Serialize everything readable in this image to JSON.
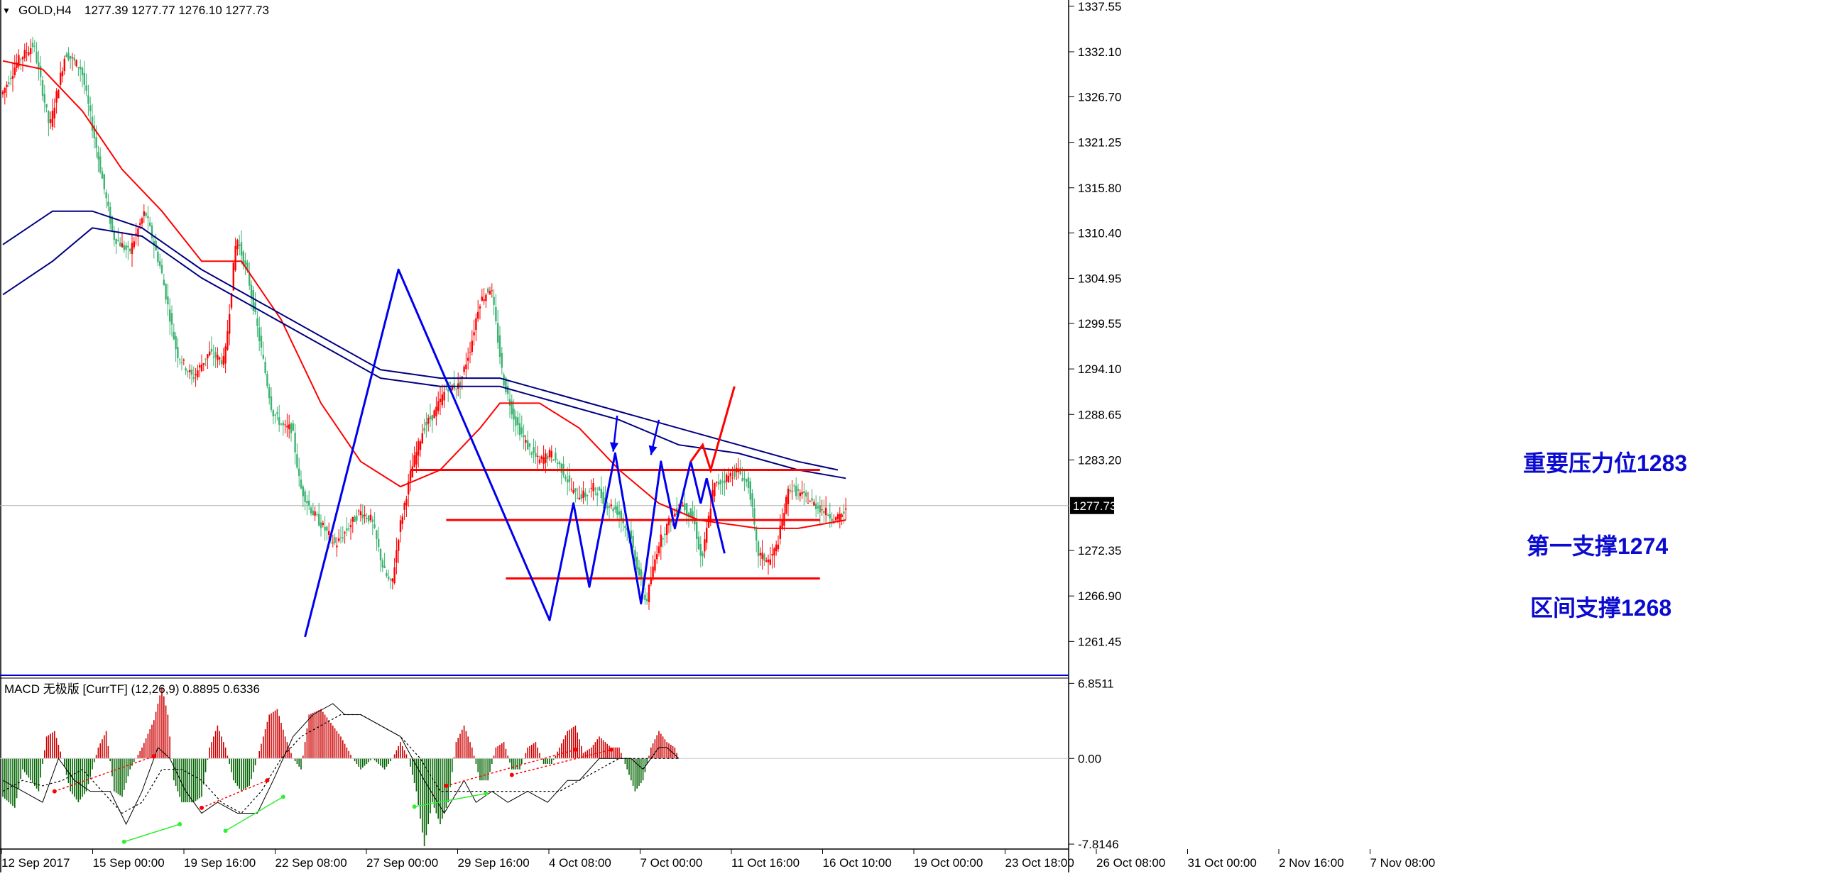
{
  "chart_data": [
    {
      "type": "candlestick",
      "header": {
        "menu_glyph": "▼",
        "symbol": "GOLD,H4",
        "ohlc": "1277.39 1277.77 1276.10 1277.73",
        "open": 1277.39,
        "high": 1277.77,
        "low": 1276.1,
        "close": 1277.73
      },
      "ylim": [
        1257.4,
        1338.3
      ],
      "y_ticks": [
        1337.55,
        1332.1,
        1326.7,
        1321.25,
        1315.8,
        1310.4,
        1304.95,
        1299.55,
        1294.1,
        1288.65,
        1283.2,
        1272.35,
        1266.9,
        1261.45
      ],
      "y_tick_labels": [
        "1337.55",
        "1332.10",
        "1326.70",
        "1321.25",
        "1315.80",
        "1310.40",
        "1304.95",
        "1299.55",
        "1294.10",
        "1288.65",
        "1283.20",
        "1272.35",
        "1266.90",
        "1261.45"
      ],
      "current_price": 1277.73,
      "current_price_label": "1277.73",
      "bull_color": "#ff0000",
      "bear_color": "#3cb371",
      "x_tick_labels": [
        "12 Sep 2017",
        "15 Sep 00:00",
        "19 Sep 16:00",
        "22 Sep 08:00",
        "27 Sep 00:00",
        "29 Sep 16:00",
        "4 Oct 08:00",
        "7 Oct 00:00",
        "11 Oct 16:00",
        "16 Oct 10:00",
        "19 Oct 00:00",
        "23 Oct 18:00",
        "26 Oct 08:00",
        "31 Oct 00:00",
        "2 Nov 16:00",
        "7 Nov 08:00"
      ],
      "price_path": [
        [
          0,
          1327
        ],
        [
          8,
          1331
        ],
        [
          16,
          1333
        ],
        [
          24,
          1323
        ],
        [
          32,
          1332
        ],
        [
          40,
          1330
        ],
        [
          48,
          1320
        ],
        [
          56,
          1310
        ],
        [
          64,
          1308
        ],
        [
          72,
          1313
        ],
        [
          80,
          1306
        ],
        [
          88,
          1296
        ],
        [
          96,
          1293
        ],
        [
          104,
          1296
        ],
        [
          112,
          1295
        ],
        [
          118,
          1310
        ],
        [
          124,
          1305
        ],
        [
          130,
          1297
        ],
        [
          136,
          1289
        ],
        [
          142,
          1287
        ],
        [
          146,
          1287
        ],
        [
          150,
          1280
        ],
        [
          156,
          1277
        ],
        [
          162,
          1275
        ],
        [
          168,
          1273
        ],
        [
          174,
          1275
        ],
        [
          180,
          1277
        ],
        [
          186,
          1276
        ],
        [
          192,
          1270
        ],
        [
          196,
          1268
        ],
        [
          200,
          1275
        ],
        [
          206,
          1282
        ],
        [
          212,
          1287
        ],
        [
          218,
          1289
        ],
        [
          224,
          1292
        ],
        [
          230,
          1292
        ],
        [
          236,
          1297
        ],
        [
          240,
          1302
        ],
        [
          246,
          1304
        ],
        [
          252,
          1293
        ],
        [
          258,
          1288
        ],
        [
          264,
          1285
        ],
        [
          270,
          1283
        ],
        [
          276,
          1284
        ],
        [
          282,
          1282
        ],
        [
          288,
          1279
        ],
        [
          294,
          1279
        ],
        [
          298,
          1280
        ],
        [
          304,
          1278
        ],
        [
          310,
          1277
        ],
        [
          316,
          1274
        ],
        [
          320,
          1270
        ],
        [
          324,
          1266
        ],
        [
          330,
          1273
        ],
        [
          336,
          1276
        ],
        [
          342,
          1278
        ],
        [
          348,
          1276
        ],
        [
          352,
          1271
        ],
        [
          358,
          1280
        ],
        [
          364,
          1281
        ],
        [
          370,
          1282
        ],
        [
          376,
          1280
        ],
        [
          380,
          1272
        ],
        [
          386,
          1271
        ],
        [
          390,
          1273
        ],
        [
          396,
          1280
        ],
        [
          402,
          1279
        ],
        [
          408,
          1278
        ],
        [
          414,
          1277
        ],
        [
          420,
          1276
        ],
        [
          424,
          1277
        ]
      ],
      "overlays": {
        "ma_red": [
          [
            0,
            1331
          ],
          [
            20,
            1330
          ],
          [
            40,
            1325
          ],
          [
            60,
            1318
          ],
          [
            80,
            1313
          ],
          [
            100,
            1307
          ],
          [
            120,
            1307
          ],
          [
            140,
            1300
          ],
          [
            160,
            1290
          ],
          [
            180,
            1283
          ],
          [
            200,
            1280
          ],
          [
            220,
            1282
          ],
          [
            240,
            1287
          ],
          [
            250,
            1290
          ],
          [
            270,
            1290
          ],
          [
            290,
            1287
          ],
          [
            310,
            1282
          ],
          [
            330,
            1278
          ],
          [
            350,
            1276
          ],
          [
            380,
            1275
          ],
          [
            400,
            1275
          ],
          [
            424,
            1276
          ]
        ],
        "ma_blue_1": [
          [
            0,
            1309
          ],
          [
            25,
            1313
          ],
          [
            45,
            1313
          ],
          [
            70,
            1311
          ],
          [
            100,
            1306
          ],
          [
            130,
            1302
          ],
          [
            160,
            1298
          ],
          [
            190,
            1294
          ],
          [
            220,
            1293
          ],
          [
            250,
            1293
          ],
          [
            280,
            1291
          ],
          [
            310,
            1289
          ],
          [
            340,
            1287
          ],
          [
            370,
            1285
          ],
          [
            400,
            1283
          ],
          [
            420,
            1282
          ]
        ],
        "ma_blue_2": [
          [
            0,
            1303
          ],
          [
            25,
            1307
          ],
          [
            45,
            1311
          ],
          [
            70,
            1310
          ],
          [
            100,
            1305
          ],
          [
            130,
            1301
          ],
          [
            160,
            1297
          ],
          [
            190,
            1293
          ],
          [
            220,
            1292
          ],
          [
            250,
            1292
          ],
          [
            280,
            1290
          ],
          [
            310,
            1288
          ],
          [
            340,
            1285
          ],
          [
            370,
            1284
          ],
          [
            400,
            1282
          ],
          [
            424,
            1281
          ]
        ],
        "zigzag": [
          [
            152,
            1262
          ],
          [
            199,
            1306
          ],
          [
            275,
            1264
          ],
          [
            287,
            1278
          ],
          [
            295,
            1268
          ],
          [
            308,
            1284
          ],
          [
            321,
            1266
          ],
          [
            331,
            1283
          ],
          [
            338,
            1275
          ],
          [
            346,
            1283
          ]
        ],
        "projection_blue": [
          [
            346,
            1283
          ],
          [
            351,
            1278
          ],
          [
            354,
            1281
          ],
          [
            363,
            1272
          ]
        ],
        "projection_red": [
          [
            346,
            1283
          ],
          [
            352,
            1285
          ],
          [
            356,
            1282
          ],
          [
            368,
            1292
          ]
        ],
        "arrows": [
          [
            309,
            1288.5,
            307,
            1284.2
          ],
          [
            330,
            1288,
            326,
            1283.8
          ]
        ]
      },
      "levels": [
        {
          "price": 1282,
          "label": "重要压力位1283",
          "x_from": 205,
          "x_to": 411
        },
        {
          "price": 1276,
          "label": "第一支撑1274",
          "x_from": 223,
          "x_to": 411
        },
        {
          "price": 1269,
          "label": "区间支撑1268",
          "x_from": 253,
          "x_to": 411
        }
      ]
    },
    {
      "type": "macd",
      "title": "MACD 无极版 [CurrTF] (12,26,9) 0.8895 0.6336",
      "params": [
        12,
        26,
        9
      ],
      "macd_value": 0.8895,
      "signal_value": 0.6336,
      "ylim": [
        -8.2,
        7.2
      ],
      "y_tick_labels": [
        "6.8511",
        "0.00",
        "-7.8146"
      ],
      "y_ticks": [
        6.8511,
        0,
        -7.8146
      ],
      "pos_color": "#cc0000",
      "neg_color": "#006400",
      "hist_path": [
        [
          0,
          -3.5
        ],
        [
          6,
          -4.5
        ],
        [
          10,
          -1
        ],
        [
          14,
          -2
        ],
        [
          18,
          -3
        ],
        [
          22,
          2
        ],
        [
          26,
          2.5
        ],
        [
          30,
          0
        ],
        [
          34,
          -3
        ],
        [
          38,
          -4
        ],
        [
          42,
          -3
        ],
        [
          48,
          1
        ],
        [
          52,
          2.5
        ],
        [
          56,
          -3
        ],
        [
          60,
          -3.5
        ],
        [
          64,
          -1
        ],
        [
          70,
          1
        ],
        [
          76,
          3.5
        ],
        [
          80,
          6.5
        ],
        [
          83,
          4
        ],
        [
          86,
          -2
        ],
        [
          90,
          -4
        ],
        [
          96,
          -4
        ],
        [
          100,
          -3.5
        ],
        [
          104,
          1
        ],
        [
          108,
          3
        ],
        [
          112,
          1
        ],
        [
          116,
          -2
        ],
        [
          120,
          -3
        ],
        [
          124,
          -2.5
        ],
        [
          128,
          0
        ],
        [
          134,
          4
        ],
        [
          138,
          4.5
        ],
        [
          142,
          2
        ],
        [
          146,
          0
        ],
        [
          150,
          -1
        ],
        [
          154,
          4
        ],
        [
          160,
          4.5
        ],
        [
          166,
          3
        ],
        [
          170,
          2
        ],
        [
          176,
          0
        ],
        [
          180,
          -1
        ],
        [
          186,
          0
        ],
        [
          192,
          -1
        ],
        [
          196,
          0
        ],
        [
          200,
          1.5
        ],
        [
          204,
          0
        ],
        [
          208,
          -3
        ],
        [
          212,
          -8
        ],
        [
          216,
          -4
        ],
        [
          220,
          -6
        ],
        [
          224,
          -4
        ],
        [
          228,
          1.5
        ],
        [
          232,
          3
        ],
        [
          236,
          1
        ],
        [
          240,
          -2
        ],
        [
          244,
          -2
        ],
        [
          248,
          1
        ],
        [
          252,
          1.5
        ],
        [
          256,
          -1
        ],
        [
          260,
          -1
        ],
        [
          264,
          1
        ],
        [
          268,
          1.5
        ],
        [
          272,
          -0.5
        ],
        [
          276,
          -0.5
        ],
        [
          280,
          1
        ],
        [
          284,
          2.5
        ],
        [
          288,
          3
        ],
        [
          292,
          0.5
        ],
        [
          296,
          1
        ],
        [
          300,
          2
        ],
        [
          306,
          1
        ],
        [
          310,
          1
        ],
        [
          314,
          -1
        ],
        [
          318,
          -3
        ],
        [
          322,
          -2
        ],
        [
          326,
          1
        ],
        [
          330,
          2.5
        ],
        [
          334,
          1.5
        ],
        [
          338,
          1
        ],
        [
          340,
          0
        ]
      ],
      "macd_line": [
        [
          0,
          -2
        ],
        [
          10,
          -3
        ],
        [
          20,
          -4
        ],
        [
          28,
          0
        ],
        [
          36,
          -2
        ],
        [
          44,
          -3
        ],
        [
          54,
          -3
        ],
        [
          62,
          -6
        ],
        [
          70,
          -3
        ],
        [
          78,
          1
        ],
        [
          84,
          0
        ],
        [
          92,
          -3
        ],
        [
          100,
          -5
        ],
        [
          108,
          -4
        ],
        [
          118,
          -5
        ],
        [
          128,
          -5
        ],
        [
          136,
          -2
        ],
        [
          146,
          2
        ],
        [
          156,
          4
        ],
        [
          166,
          5
        ],
        [
          172,
          4
        ],
        [
          180,
          4
        ],
        [
          190,
          3
        ],
        [
          200,
          2
        ],
        [
          206,
          0
        ],
        [
          212,
          -2
        ],
        [
          222,
          -5
        ],
        [
          232,
          -2
        ],
        [
          238,
          -4
        ],
        [
          246,
          -3
        ],
        [
          254,
          -4
        ],
        [
          264,
          -3
        ],
        [
          274,
          -4
        ],
        [
          284,
          -2
        ],
        [
          290,
          -2
        ],
        [
          300,
          0
        ],
        [
          306,
          0
        ],
        [
          316,
          0
        ],
        [
          322,
          -1
        ],
        [
          330,
          1
        ],
        [
          334,
          1
        ],
        [
          340,
          0
        ]
      ],
      "signal_line": [
        [
          0,
          -3
        ],
        [
          10,
          -2
        ],
        [
          20,
          -2.5
        ],
        [
          30,
          -2
        ],
        [
          40,
          -1
        ],
        [
          50,
          -3
        ],
        [
          60,
          -5
        ],
        [
          70,
          -4
        ],
        [
          80,
          -1
        ],
        [
          90,
          -1
        ],
        [
          100,
          -2
        ],
        [
          110,
          -4
        ],
        [
          120,
          -5
        ],
        [
          130,
          -3
        ],
        [
          140,
          0
        ],
        [
          150,
          2
        ],
        [
          160,
          3
        ],
        [
          170,
          4
        ],
        [
          180,
          4
        ],
        [
          190,
          3
        ],
        [
          200,
          2
        ],
        [
          210,
          0
        ],
        [
          220,
          -3
        ],
        [
          230,
          -3
        ],
        [
          240,
          -3
        ],
        [
          250,
          -3
        ],
        [
          260,
          -3
        ],
        [
          270,
          -3
        ],
        [
          280,
          -3
        ],
        [
          290,
          -2
        ],
        [
          300,
          -1
        ],
        [
          310,
          0
        ],
        [
          320,
          0
        ],
        [
          330,
          0
        ],
        [
          340,
          0
        ]
      ],
      "divergences": [
        {
          "color": "#ff0000",
          "from": [
            26,
            -3
          ],
          "to": [
            76,
            0.2
          ]
        },
        {
          "color": "#33ee33",
          "from": [
            61,
            -7.6
          ],
          "to": [
            89,
            -6
          ]
        },
        {
          "color": "#ff0000",
          "from": [
            100,
            -4.5
          ],
          "to": [
            133,
            -2
          ]
        },
        {
          "color": "#33ee33",
          "from": [
            112,
            -6.6
          ],
          "to": [
            141,
            -3.5
          ]
        },
        {
          "color": "#33ee33",
          "from": [
            207,
            -4.4
          ],
          "to": [
            243,
            -3.2
          ]
        },
        {
          "color": "#ff0000",
          "from": [
            223,
            -2.5
          ],
          "to": [
            288,
            0.8
          ]
        },
        {
          "color": "#ff0000",
          "from": [
            256,
            -1.5
          ],
          "to": [
            306,
            0.8
          ]
        }
      ]
    }
  ]
}
